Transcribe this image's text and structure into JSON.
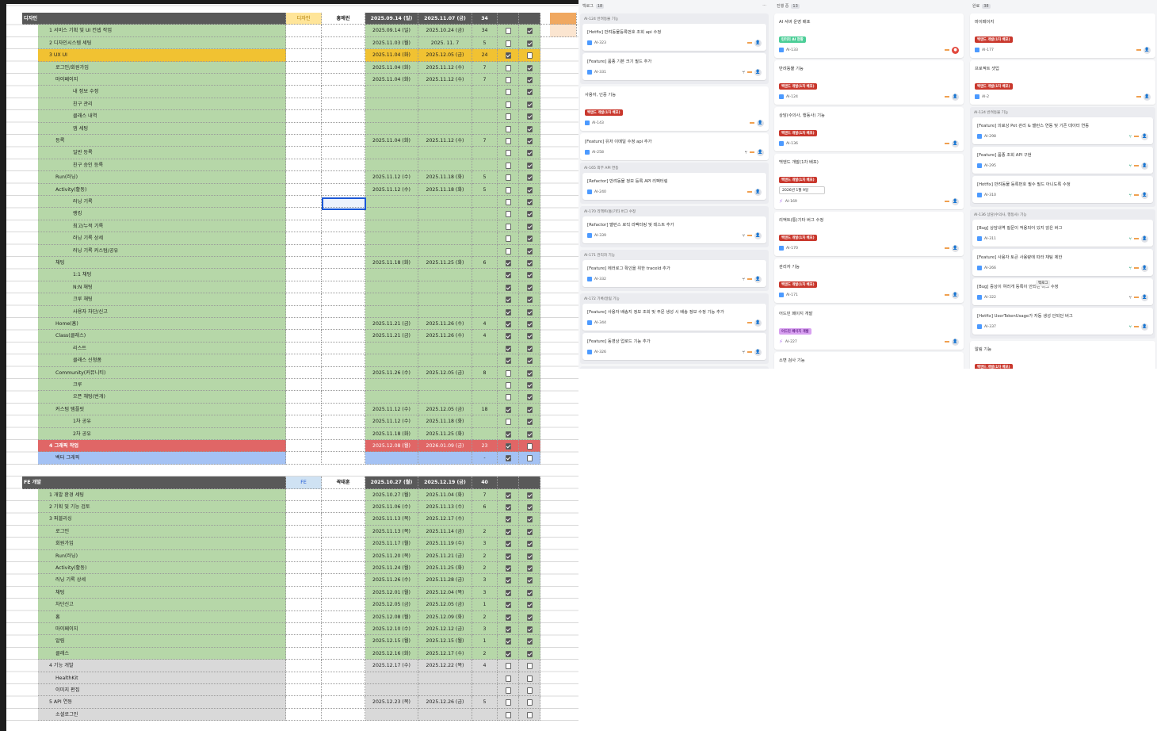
{
  "colors": {
    "header": "#595959",
    "green": "#b6d7a8",
    "orange": "#f1c232",
    "red": "#e06666",
    "blue": "#a4c2f4",
    "gray": "#d9d9d9",
    "yellow": "#ffe599",
    "lightblue": "#cfe2f3"
  },
  "sheet": {
    "sections": [
      {
        "title": "디자인",
        "role": "디자인",
        "owner": "홍예린",
        "role_color": "#ffe599",
        "start": "2025.09.14 (일)",
        "end": "2025.11.07 (금)",
        "days": "34",
        "rows": [
          {
            "name": "1  서비스 기획 및 UI 컨셉 작업",
            "lv": 1,
            "start": "2025.09.14 (일)",
            "end": "2025.10.24 (금)",
            "days": "34",
            "c1": false,
            "c2": true,
            "bg": "green"
          },
          {
            "name": "2  디자인시스템 세팅",
            "lv": 1,
            "start": "2025.11.03 (월)",
            "end": "2025. 11. 7",
            "days": "5",
            "c1": false,
            "c2": true,
            "bg": "green"
          },
          {
            "name": "3  UX UI",
            "lv": 1,
            "start": "2025.11.04 (화)",
            "end": "2025.12.05 (금)",
            "days": "24",
            "c1": true,
            "c2": false,
            "bg": "orange"
          },
          {
            "name": "로그인/회원가입",
            "lv": 2,
            "start": "2025.11.04 (화)",
            "end": "2025.11.12 (수)",
            "days": "7",
            "c1": false,
            "c2": true,
            "bg": "green"
          },
          {
            "name": "마이페이지",
            "lv": 2,
            "start": "2025.11.04 (화)",
            "end": "2025.11.12 (수)",
            "days": "7",
            "c1": false,
            "c2": true,
            "bg": "green"
          },
          {
            "name": "내 정보 수정",
            "lv": 3,
            "c1": false,
            "c2": true,
            "bg": "green"
          },
          {
            "name": "친구 관리",
            "lv": 3,
            "c1": false,
            "c2": true,
            "bg": "green"
          },
          {
            "name": "클래스 내역",
            "lv": 3,
            "c1": false,
            "c2": true,
            "bg": "green"
          },
          {
            "name": "앱 세팅",
            "lv": 3,
            "c1": false,
            "c2": true,
            "bg": "green"
          },
          {
            "name": "등록",
            "lv": 2,
            "start": "2025.11.04 (화)",
            "end": "2025.11.12 (수)",
            "days": "7",
            "c1": false,
            "c2": true,
            "bg": "green"
          },
          {
            "name": "일반 등록",
            "lv": 3,
            "c1": false,
            "c2": true,
            "bg": "green"
          },
          {
            "name": "친구 승인 등록",
            "lv": 3,
            "c1": false,
            "c2": true,
            "bg": "green"
          },
          {
            "name": "Run(러닝)",
            "lv": 2,
            "start": "2025.11.12 (수)",
            "end": "2025.11.18 (화)",
            "days": "5",
            "c1": false,
            "c2": true,
            "bg": "green"
          },
          {
            "name": "Activity(활동)",
            "lv": 2,
            "start": "2025.11.12 (수)",
            "end": "2025.11.18 (화)",
            "days": "5",
            "c1": false,
            "c2": true,
            "bg": "green"
          },
          {
            "name": "러닝 기록",
            "lv": 3,
            "c1": false,
            "c2": true,
            "bg": "green"
          },
          {
            "name": "랭킹",
            "lv": 3,
            "c1": false,
            "c2": true,
            "bg": "green"
          },
          {
            "name": "최고/누적 기록",
            "lv": 3,
            "c1": false,
            "c2": true,
            "bg": "green"
          },
          {
            "name": "러닝 기록 상세",
            "lv": 3,
            "c1": false,
            "c2": true,
            "bg": "green"
          },
          {
            "name": "러닝 기록 커스텀/공유",
            "lv": 3,
            "c1": false,
            "c2": true,
            "bg": "green"
          },
          {
            "name": "채팅",
            "lv": 2,
            "start": "2025.11.18 (화)",
            "end": "2025.11.25 (화)",
            "days": "6",
            "c1": true,
            "c2": true,
            "bg": "green"
          },
          {
            "name": "1:1 채팅",
            "lv": 3,
            "c1": true,
            "c2": true,
            "bg": "green"
          },
          {
            "name": "N:N 채팅",
            "lv": 3,
            "c1": true,
            "c2": true,
            "bg": "green"
          },
          {
            "name": "크루 채팅",
            "lv": 3,
            "c1": true,
            "c2": true,
            "bg": "green"
          },
          {
            "name": "사용자 차단/신고",
            "lv": 3,
            "c1": true,
            "c2": true,
            "bg": "green"
          },
          {
            "name": "Home(홈)",
            "lv": 2,
            "start": "2025.11.21 (금)",
            "end": "2025.11.26 (수)",
            "days": "4",
            "c1": true,
            "c2": true,
            "bg": "green"
          },
          {
            "name": "Class(클래스)",
            "lv": 2,
            "start": "2025.11.21 (금)",
            "end": "2025.11.26 (수)",
            "days": "4",
            "c1": true,
            "c2": true,
            "bg": "green"
          },
          {
            "name": "리스트",
            "lv": 3,
            "c1": true,
            "c2": true,
            "bg": "green"
          },
          {
            "name": "클래스 신청폼",
            "lv": 3,
            "c1": true,
            "c2": true,
            "bg": "green"
          },
          {
            "name": "Community(커뮤니티)",
            "lv": 2,
            "start": "2025.11.26 (수)",
            "end": "2025.12.05 (금)",
            "days": "8",
            "c1": false,
            "c2": true,
            "bg": "green"
          },
          {
            "name": "크루",
            "lv": 3,
            "c1": false,
            "c2": true,
            "bg": "green"
          },
          {
            "name": "오픈 채팅(번개)",
            "lv": 3,
            "c1": false,
            "c2": true,
            "bg": "green"
          },
          {
            "name": "커스텀 템플릿",
            "lv": 2,
            "start": "2025.11.12 (수)",
            "end": "2025.12.05 (금)",
            "days": "18",
            "c1": true,
            "c2": true,
            "bg": "green"
          },
          {
            "name": "1차 공유",
            "lv": 3,
            "start": "2025.11.12 (수)",
            "end": "2025.11.18 (화)",
            "days": "",
            "c1": false,
            "c2": true,
            "bg": "green"
          },
          {
            "name": "2차 공유",
            "lv": 3,
            "start": "2025.11.18 (화)",
            "end": "2025.11.25 (화)",
            "days": "",
            "c1": true,
            "c2": true,
            "bg": "green"
          },
          {
            "name": "4  그래픽 작업",
            "lv": 1,
            "start": "2025.12.08 (월)",
            "end": "2026.01.09 (금)",
            "days": "23",
            "c1": true,
            "c2": false,
            "bg": "red"
          },
          {
            "name": "벡터 그래픽",
            "lv": 2,
            "days": "-",
            "c1": true,
            "c2": false,
            "bg": "blue"
          }
        ]
      },
      {
        "title": "FE 개발",
        "role": "FE",
        "owner": "곽태훈",
        "role_color": "#cfe2f3",
        "start": "2025.10.27 (월)",
        "end": "2025.12.19 (금)",
        "days": "40",
        "rows": [
          {
            "name": "1  개발 환경 세팅",
            "lv": 1,
            "start": "2025.10.27 (월)",
            "end": "2025.11.04 (화)",
            "days": "7",
            "c1": true,
            "c2": true,
            "bg": "green"
          },
          {
            "name": "2  기획 및 기능 검토",
            "lv": 1,
            "start": "2025.11.06 (수)",
            "end": "2025.11.13 (수)",
            "days": "6",
            "c1": true,
            "c2": true,
            "bg": "green"
          },
          {
            "name": "3  퍼블리싱",
            "lv": 1,
            "start": "2025.11.13 (목)",
            "end": "2025.12.17 (수)",
            "days": "",
            "c1": true,
            "c2": true,
            "bg": "green"
          },
          {
            "name": "로그인",
            "lv": 2,
            "start": "2025.11.13 (목)",
            "end": "2025.11.14 (금)",
            "days": "2",
            "c1": true,
            "c2": true,
            "bg": "green"
          },
          {
            "name": "회원가입",
            "lv": 2,
            "start": "2025.11.17 (월)",
            "end": "2025.11.19 (수)",
            "days": "3",
            "c1": true,
            "c2": true,
            "bg": "green"
          },
          {
            "name": "Run(러닝)",
            "lv": 2,
            "start": "2025.11.20 (목)",
            "end": "2025.11.21 (금)",
            "days": "2",
            "c1": true,
            "c2": true,
            "bg": "green"
          },
          {
            "name": "Activity(활동)",
            "lv": 2,
            "start": "2025.11.24 (월)",
            "end": "2025.11.25 (화)",
            "days": "2",
            "c1": true,
            "c2": true,
            "bg": "green"
          },
          {
            "name": "러닝 기록 상세",
            "lv": 2,
            "start": "2025.11.26 (수)",
            "end": "2025.11.28 (금)",
            "days": "3",
            "c1": true,
            "c2": true,
            "bg": "green"
          },
          {
            "name": "채팅",
            "lv": 2,
            "start": "2025.12.01 (월)",
            "end": "2025.12.04 (목)",
            "days": "3",
            "c1": true,
            "c2": true,
            "bg": "green"
          },
          {
            "name": "차단신고",
            "lv": 2,
            "start": "2025.12.05 (금)",
            "end": "2025.12.05 (금)",
            "days": "1",
            "c1": true,
            "c2": true,
            "bg": "green"
          },
          {
            "name": "홈",
            "lv": 2,
            "start": "2025.12.08 (월)",
            "end": "2025.12.09 (화)",
            "days": "2",
            "c1": true,
            "c2": true,
            "bg": "green"
          },
          {
            "name": "마이페이지",
            "lv": 2,
            "start": "2025.12.10 (수)",
            "end": "2025.12.12 (금)",
            "days": "3",
            "c1": true,
            "c2": true,
            "bg": "green"
          },
          {
            "name": "알림",
            "lv": 2,
            "start": "2025.12.15 (월)",
            "end": "2025.12.15 (월)",
            "days": "1",
            "c1": true,
            "c2": true,
            "bg": "green"
          },
          {
            "name": "클래스",
            "lv": 2,
            "start": "2025.12.16 (화)",
            "end": "2025.12.17 (수)",
            "days": "2",
            "c1": true,
            "c2": true,
            "bg": "green"
          },
          {
            "name": "4  기능 개발",
            "lv": 1,
            "start": "2025.12.17 (수)",
            "end": "2025.12.22 (목)",
            "days": "4",
            "c1": false,
            "c2": false,
            "bg": "gray"
          },
          {
            "name": "HealthKit",
            "lv": 2,
            "c1": false,
            "c2": false,
            "bg": "gray"
          },
          {
            "name": "이미지 편집",
            "lv": 2,
            "c1": false,
            "c2": false,
            "bg": "gray"
          },
          {
            "name": "5  API 연동",
            "lv": 1,
            "start": "2025.12.23 (목)",
            "end": "2025.12.26 (금)",
            "days": "5",
            "c1": false,
            "c2": false,
            "bg": "gray"
          },
          {
            "name": "소셜로그인",
            "lv": 2,
            "c1": false,
            "c2": false,
            "bg": "gray"
          }
        ]
      }
    ]
  },
  "board": {
    "columns": [
      {
        "title": "백로그",
        "count": "18",
        "items": [
          {
            "group": "AI-124 반려동물 기능",
            "cards": [
              {
                "title": "[Hotfix] 반려동물등록번호 조회 api 수정",
                "id": "AI-323"
              },
              {
                "title": "[Feature] 품종 기본 크기 필드 추가",
                "id": "AI-331",
                "branch": true
              }
            ]
          },
          {
            "title": "사용자, 인증 기능",
            "label": "백엔드 개발(1차 배포)",
            "label_color": "#c9372c",
            "id": "AI-143"
          },
          {
            "title": "[Feature] 유저 이메일 수정 api 추가",
            "id": "AI-258",
            "branch": true
          },
          {
            "group": "AI-165 외부 API 연동",
            "cards": [
              {
                "title": "[Refactor] 반려동물 정보 등록 API 리팩터링",
                "id": "AI-240"
              }
            ]
          },
          {
            "group": "AI-170 리액트(통)기타 버그 수정",
            "cards": [
              {
                "title": "[Refactor] 밸런스 로직 리팩터링 및 테스트 추가",
                "id": "AI-339",
                "branch": true
              }
            ]
          },
          {
            "group": "AI-171 관리자 기능",
            "cards": [
              {
                "title": "[Feature] 에러로그 확인을 위한 traceId 추가",
                "id": "AI-332",
                "branch": true
              }
            ]
          },
          {
            "group": "AI-172 기록/알림 기능",
            "cards": [
              {
                "title": "[Feature] 사용자 배송지 정보 조회 및 주문 생성 시 배송 정보 수정 기능 추가",
                "id": "AI-344"
              },
              {
                "title": "[Feature] 동영상 업로드 기능 추가",
                "id": "AI-326",
                "branch": true
              }
            ]
          },
          {
            "group": "AI-227 어드민 페이지 개발",
            "cards": []
          }
        ]
      },
      {
        "title": "진행 중",
        "count": "13",
        "items": [
          {
            "title": "AI 서버 운영 배포",
            "label": "린터리 AI 현황",
            "label_color": "#4bce97",
            "id": "AI-133",
            "avatar": "red"
          },
          {
            "title": "반려동물 기능",
            "label": "백엔드 개발(1차 배포)",
            "label_color": "#c9372c",
            "id": "AI-124"
          },
          {
            "title": "상담(수의사, 행동사) 기능",
            "label": "백엔드 개발(1차 배포)",
            "label_color": "#c9372c",
            "id": "AI-136"
          },
          {
            "title": "백엔드 개발(1차 배포)",
            "label": "백엔드 개발(1차 배포)",
            "label_color": "#c9372c",
            "date": "2026년 1월 9일",
            "id": "AI-169",
            "epic": true
          },
          {
            "title": "리액트(통)기타 버그 수정",
            "label": "백엔드 개발(1차 배포)",
            "label_color": "#c9372c",
            "id": "AI-170"
          },
          {
            "title": "관리자 기능",
            "label": "백엔드 개발(1차 배포)",
            "label_color": "#c9372c",
            "id": "AI-171"
          },
          {
            "title": "어드민 페이지 개발",
            "label": "어드민 페이지 개발",
            "label_color": "#d8a0f0",
            "id": "AI-227",
            "epic": true
          },
          {
            "title": "소변 검사 기능",
            "label": "소변 검사 기능",
            "label_color": "#1d5fd6",
            "id": "AI-304",
            "epic": true,
            "avatar": "green"
          },
          {
            "group": "",
            "cards": [
              {
                "title": "[Refactor] Threshold 클래스 더 나은 구조로 리팩토링",
                "label": "소변 검사 기능",
                "label_color": "#1d5fd6",
                "id": "AI-338",
                "branch": true,
                "avatar": "green"
              }
            ]
          }
        ]
      },
      {
        "title": "완료",
        "count": "38",
        "items": [
          {
            "title": "마이페이지",
            "label": "백엔드 개발(1차 배포)",
            "label_color": "#c9372c",
            "id": "AI-177"
          },
          {
            "title": "프로젝트 셋업",
            "label": "백엔드 개발(1차 배포)",
            "label_color": "#c9372c",
            "id": "AI-2"
          },
          {
            "group": "AI-124 반려동물 기능",
            "cards": [
              {
                "title": "[Feature] 의료상 Pet 관리 & 밸런스 연동 및 기존 데이터 연동",
                "id": "AI-298",
                "merged": true
              },
              {
                "title": "[Feature] 품종 조회 API 구현",
                "id": "AI-295",
                "merged": true
              },
              {
                "title": "[Hotfix] 반려동물 등록번호 필수 필드 아니도록 수정",
                "id": "AI-310",
                "merged": true
              }
            ]
          },
          {
            "group": "AI-136 상담(수의사, 행동사) 기능",
            "cards": [
              {
                "title": "[Bug] 상담내역 질문이 적용되어 있지 않은 버그",
                "id": "AI-311",
                "merged": true
              },
              {
                "title": "[Feature] 사용자 토큰 사용량에 따라 채팅 제한",
                "id": "AI-266",
                "merged": true
              },
              {
                "title": "[Bug] 증상이 여러개 등록이 안되던 버그 수정",
                "id": "AI-322",
                "branch": true,
                "tooltip": "백로그"
              },
              {
                "title": "[Hotfix] UserTokenUsage가 자동 생성 안되던 버그",
                "id": "AI-337",
                "merged": true
              }
            ]
          },
          {
            "title": "알림 기능",
            "label": "백엔드 개발(1차 배포)",
            "label_color": "#c9372c",
            "id": "AI-157"
          },
          {
            "group": "AI-147 사용자 프로 기능",
            "cards": []
          }
        ]
      }
    ]
  }
}
